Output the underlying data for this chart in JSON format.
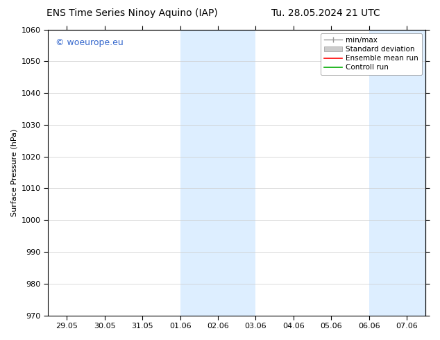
{
  "title_left": "ENS Time Series Ninoy Aquino (IAP)",
  "title_right": "Tu. 28.05.2024 21 UTC",
  "ylabel": "Surface Pressure (hPa)",
  "ylim": [
    970,
    1060
  ],
  "yticks": [
    970,
    980,
    990,
    1000,
    1010,
    1020,
    1030,
    1040,
    1050,
    1060
  ],
  "xtick_labels": [
    "29.05",
    "30.05",
    "31.05",
    "01.06",
    "02.06",
    "03.06",
    "04.06",
    "05.06",
    "06.06",
    "07.06"
  ],
  "xtick_positions": [
    0,
    1,
    2,
    3,
    4,
    5,
    6,
    7,
    8,
    9
  ],
  "xlim": [
    -0.5,
    9.5
  ],
  "shaded_bands": [
    {
      "x_start": 3.0,
      "x_end": 5.0
    },
    {
      "x_start": 8.0,
      "x_end": 9.5
    }
  ],
  "shaded_color": "#ddeeff",
  "watermark_text": "© woeurope.eu",
  "watermark_color": "#3366cc",
  "legend_items": [
    {
      "label": "min/max",
      "color": "#aaaaaa",
      "type": "line_with_caps"
    },
    {
      "label": "Standard deviation",
      "color": "#cccccc",
      "type": "filled_rect"
    },
    {
      "label": "Ensemble mean run",
      "color": "#ff0000",
      "type": "line"
    },
    {
      "label": "Controll run",
      "color": "#00aa00",
      "type": "line"
    }
  ],
  "background_color": "#ffffff",
  "plot_bg_color": "#ffffff",
  "spine_color": "#000000",
  "tick_color": "#000000",
  "font_size": 8,
  "title_font_size": 10
}
